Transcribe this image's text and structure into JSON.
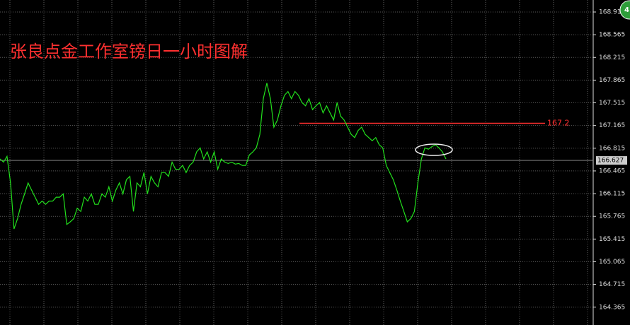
{
  "chart_data": {
    "type": "line",
    "title": "张良点金工作室镑日一小时图解",
    "series": [
      {
        "color": "#22e01c",
        "values": [
          166.65,
          166.6,
          166.69,
          166.28,
          165.57,
          165.73,
          165.95,
          166.11,
          166.28,
          166.17,
          166.06,
          165.95,
          166.0,
          165.95,
          166.0,
          166.0,
          166.06,
          166.06,
          166.11,
          165.64,
          165.68,
          165.73,
          165.89,
          165.84,
          166.06,
          166.0,
          166.11,
          165.95,
          165.95,
          166.11,
          166.06,
          166.22,
          166.0,
          166.17,
          166.28,
          166.11,
          166.33,
          166.38,
          165.84,
          166.28,
          166.22,
          166.44,
          166.11,
          166.38,
          166.28,
          166.22,
          166.44,
          166.44,
          166.38,
          166.6,
          166.49,
          166.49,
          166.55,
          166.44,
          166.55,
          166.6,
          166.76,
          166.82,
          166.65,
          166.76,
          166.6,
          166.76,
          166.49,
          166.65,
          166.6,
          166.58,
          166.6,
          166.57,
          166.58,
          166.55,
          166.55,
          166.71,
          166.76,
          166.82,
          167.03,
          167.58,
          167.82,
          167.58,
          167.14,
          167.25,
          167.47,
          167.63,
          167.69,
          167.58,
          167.69,
          167.63,
          167.52,
          167.47,
          167.58,
          167.41,
          167.47,
          167.52,
          167.36,
          167.47,
          167.36,
          167.25,
          167.52,
          167.31,
          167.25,
          167.14,
          167.03,
          166.98,
          167.09,
          167.14,
          167.03,
          166.98,
          166.93,
          166.98,
          166.87,
          166.82,
          166.55,
          166.44,
          166.33,
          166.17,
          166.0,
          165.84,
          165.68,
          165.73,
          165.84,
          166.28,
          166.65,
          166.82,
          166.8,
          166.84,
          166.87,
          166.82,
          166.76,
          166.65
        ]
      }
    ],
    "ylim": [
      164.09,
      169.1
    ],
    "yticks": [
      168.915,
      168.565,
      168.215,
      167.865,
      167.515,
      167.165,
      166.815,
      166.465,
      166.115,
      165.765,
      165.415,
      165.065,
      164.715,
      164.365
    ],
    "grid": true,
    "level": 167.2,
    "level_color": "#ff3030",
    "current_price": 166.627,
    "badge": "4"
  }
}
